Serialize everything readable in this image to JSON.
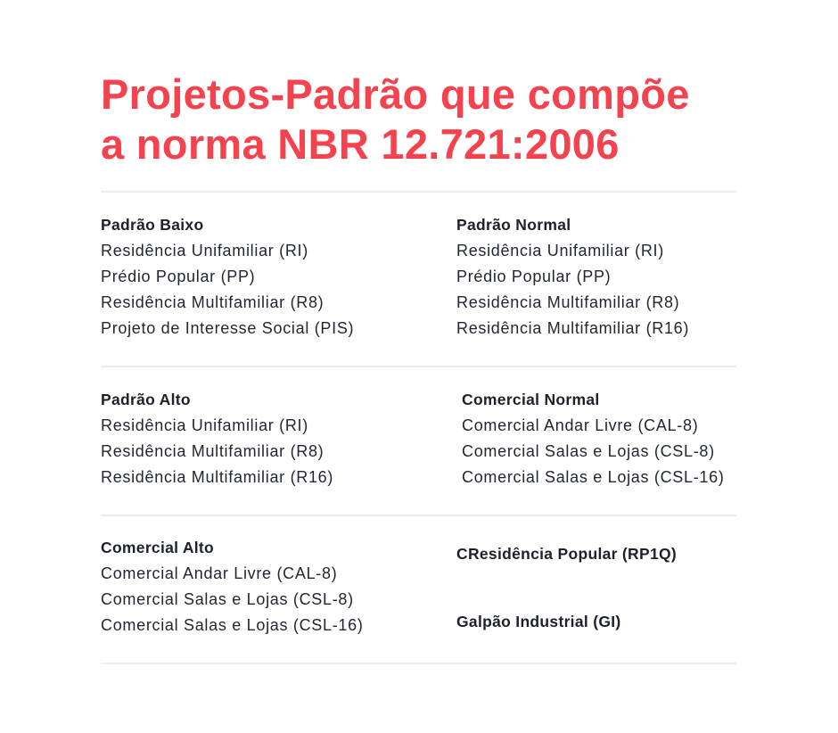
{
  "title": {
    "line1": "Projetos-Padrão que compõe",
    "line2": "a norma NBR 12.721:2006"
  },
  "colors": {
    "title": "#f4434f",
    "text": "#1f2430",
    "divider": "#ececec"
  },
  "sections": [
    {
      "heading": "Padrão Baixo",
      "items": [
        "Residência Unifamiliar (RI)",
        "Prédio Popular (PP)",
        "Residência Multifamiliar (R8)",
        "Projeto de Interesse Social (PIS)"
      ]
    },
    {
      "heading": "Padrão Normal",
      "items": [
        "Residência Unifamiliar (RI)",
        "Prédio Popular (PP)",
        "Residência Multifamiliar (R8)",
        "Residência Multifamiliar (R16)"
      ]
    },
    {
      "heading": "Padrão Alto",
      "items": [
        "Residência Unifamiliar (RI)",
        "Residência Multifamiliar (R8)",
        "Residência Multifamiliar (R16)"
      ]
    },
    {
      "heading": "Comercial Normal",
      "items": [
        "Comercial Andar Livre (CAL-8)",
        "Comercial Salas e Lojas (CSL-8)",
        "Comercial Salas e Lojas (CSL-16)"
      ]
    },
    {
      "heading": "Comercial Alto",
      "items": [
        "Comercial Andar Livre (CAL-8)",
        "Comercial Salas e Lojas (CSL-8)",
        "Comercial Salas e Lojas (CSL-16)"
      ]
    },
    {
      "heading": "CResidência Popular (RP1Q)",
      "items": []
    },
    {
      "heading": "Galpão Industrial (GI)",
      "items": []
    }
  ]
}
